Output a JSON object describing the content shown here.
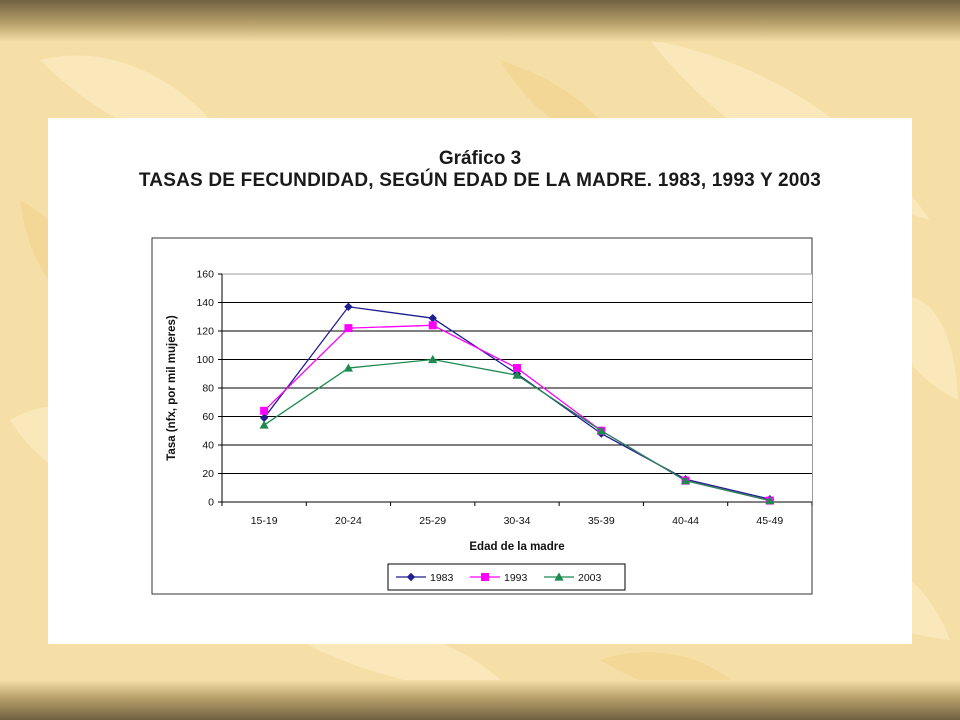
{
  "colors": {
    "series_1983": "#1f1f8f",
    "series_1993": "#ff00ff",
    "series_2003": "#1e8a4f",
    "slide_background": "#f6dfa6",
    "slide_bar": "#7a6b47"
  },
  "chart_data": {
    "type": "line",
    "title": "Gráfico 3",
    "subtitle": "TASAS DE FECUNDIDAD, SEGÚN EDAD DE LA MADRE. 1983, 1993 Y 2003",
    "xlabel": "Edad de la madre",
    "ylabel": "Tasa (nfx, por mil mujeres)",
    "categories": [
      "15-19",
      "20-24",
      "25-29",
      "30-34",
      "35-39",
      "40-44",
      "45-49"
    ],
    "ylim": [
      0,
      160
    ],
    "yticks": [
      "0",
      "20",
      "40",
      "60",
      "80",
      "100",
      "120",
      "140",
      "160"
    ],
    "grid": true,
    "legend_position": "bottom",
    "series": [
      {
        "name": "1983",
        "marker": "diamond",
        "color": "#1f1f8f",
        "values": [
          59,
          137,
          129,
          90,
          48,
          16,
          2
        ]
      },
      {
        "name": "1993",
        "marker": "square",
        "color": "#ff00ff",
        "values": [
          64,
          122,
          124,
          94,
          50,
          15,
          1
        ]
      },
      {
        "name": "2003",
        "marker": "triangle",
        "color": "#1e8a4f",
        "values": [
          54,
          94,
          100,
          89,
          50,
          15,
          1
        ]
      }
    ]
  }
}
